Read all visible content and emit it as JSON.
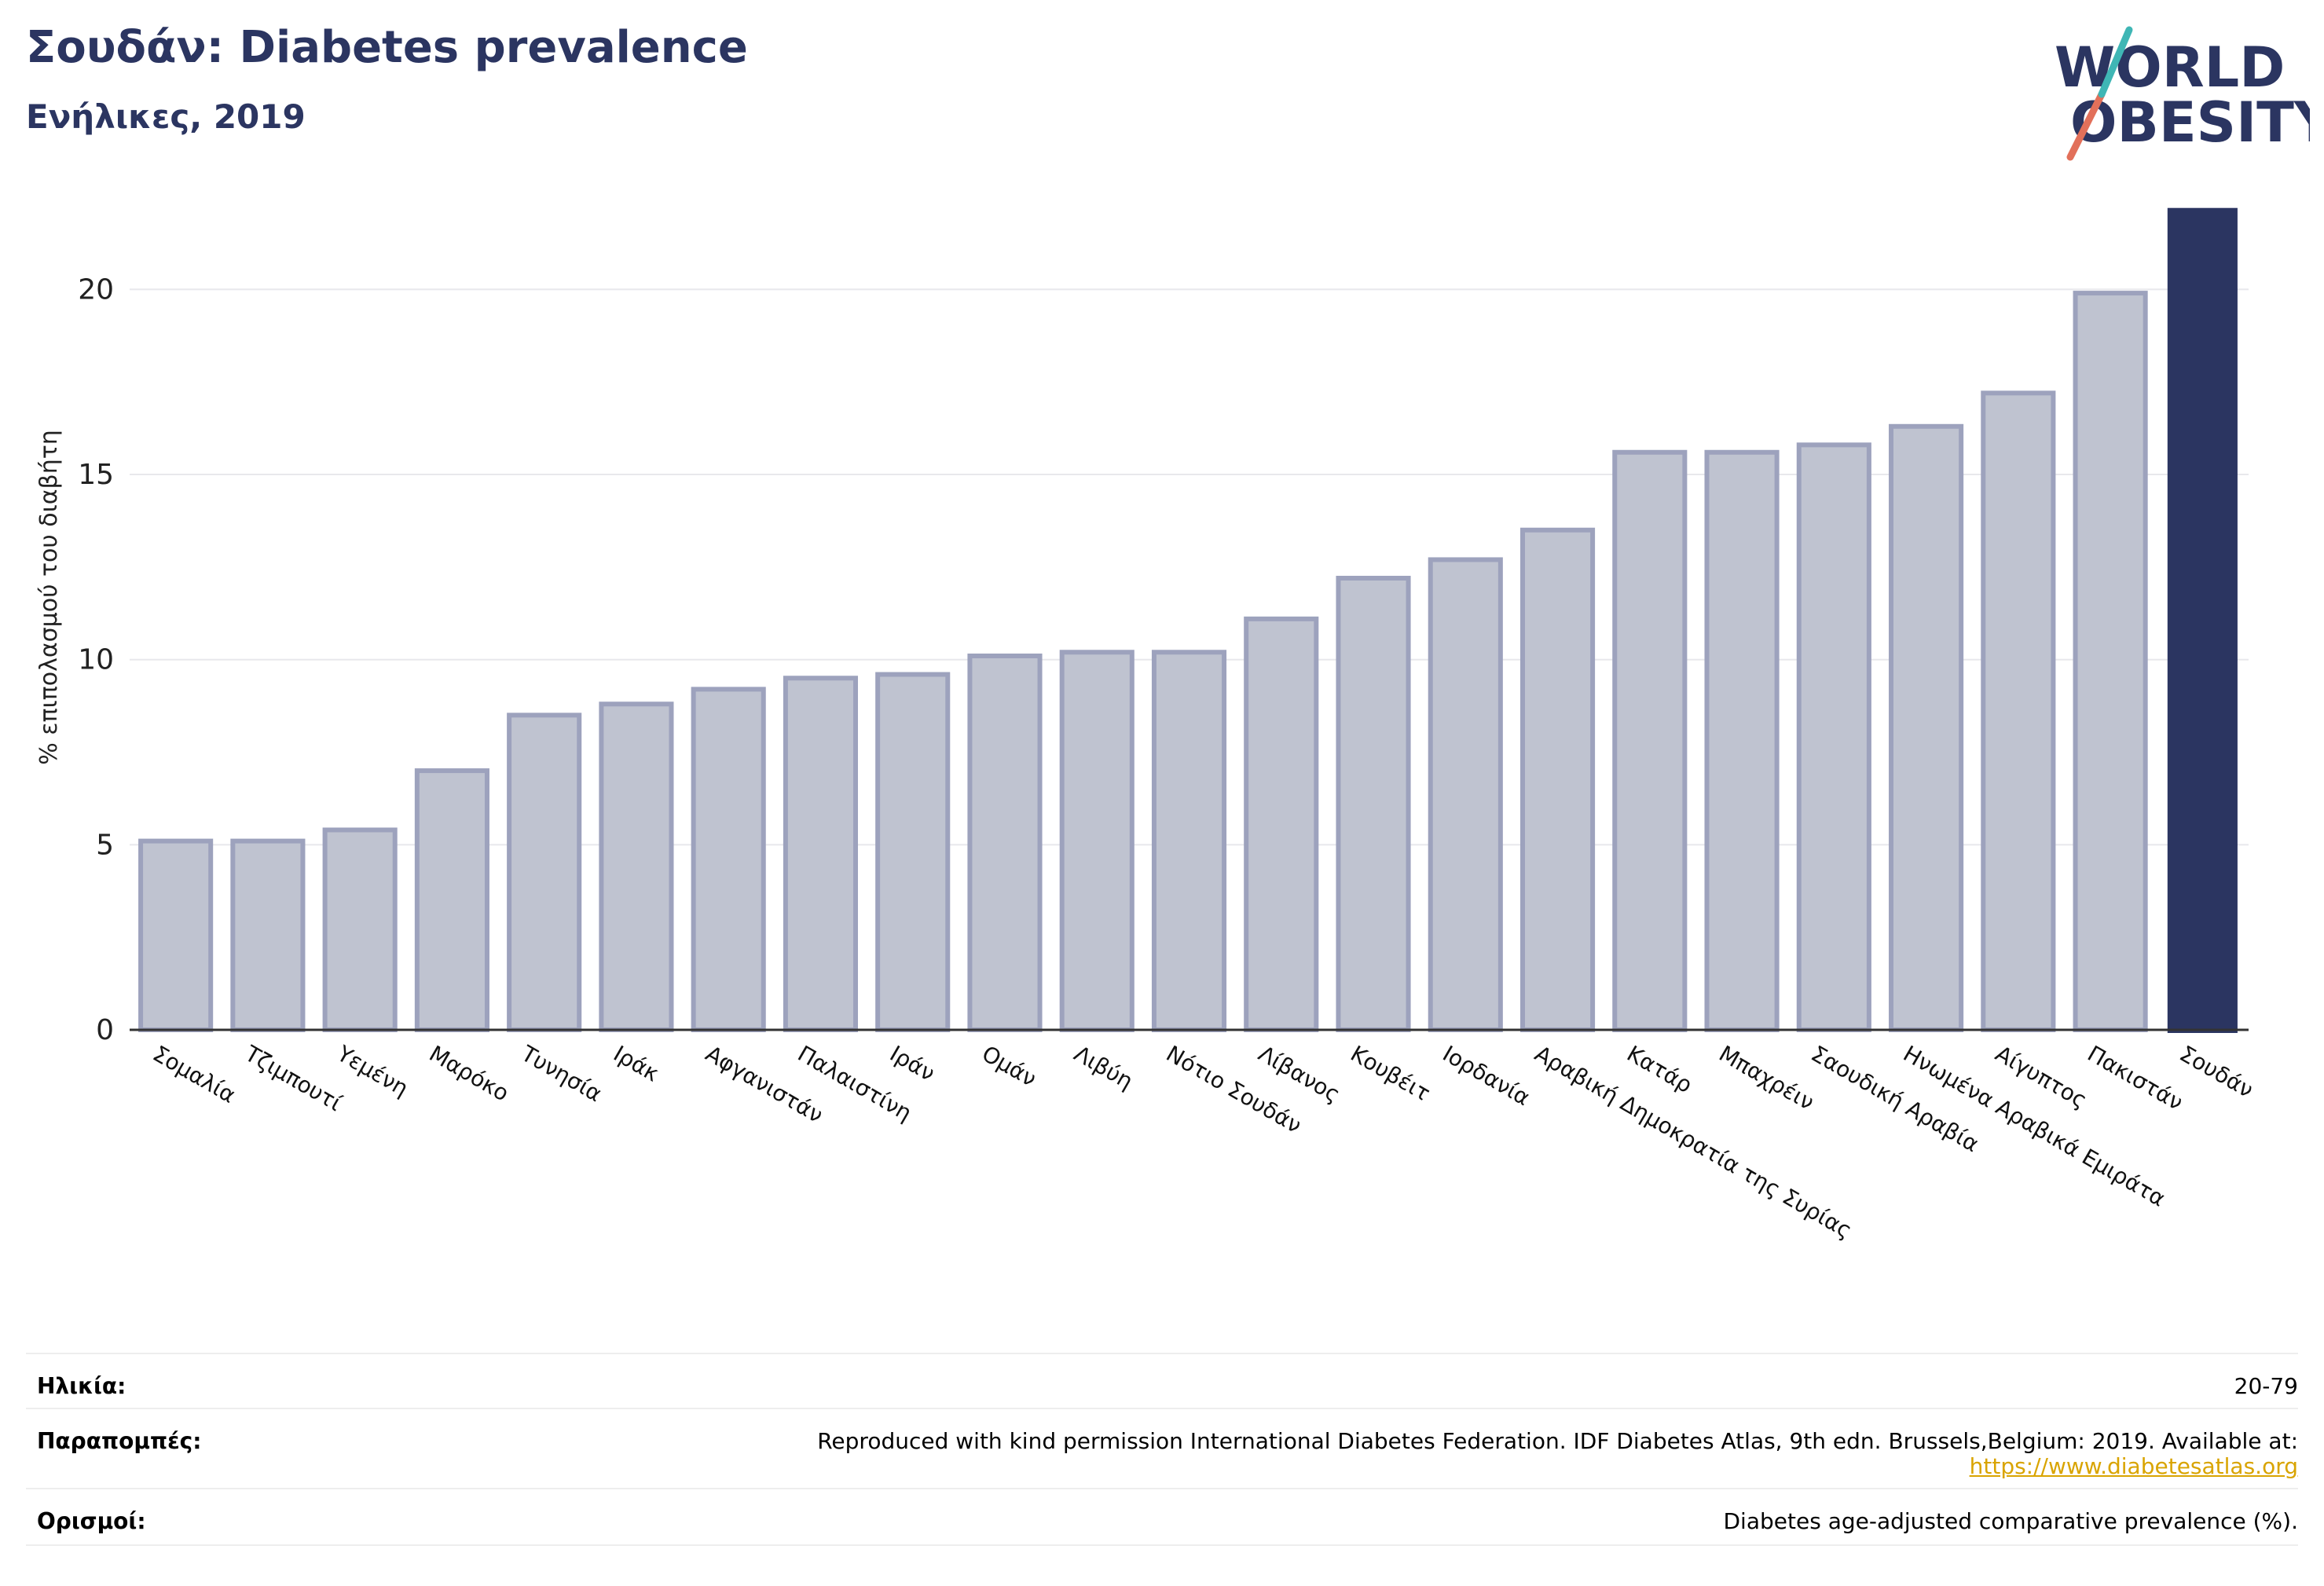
{
  "header": {
    "title": "Σουδάν: Diabetes prevalence",
    "subtitle": "Ενήλικες, 2019"
  },
  "logo": {
    "line1": "WORLD",
    "line2": "OBESITY"
  },
  "colors": {
    "highlight": "#2b3561",
    "bar": "#bfc3d0",
    "bar_edge": "#9da2bd",
    "title": "#2b3561",
    "link": "#d9a400"
  },
  "chart_data": {
    "type": "bar",
    "ylabel": "% επιπολασμού του διαβήτη",
    "ylim": [
      0,
      22.3
    ],
    "yticks": [
      0,
      5,
      10,
      15,
      20
    ],
    "grid": true,
    "highlight_category": "Σουδάν",
    "categories": [
      "Σομαλία",
      "Τζιμπουτί",
      "Υεμένη",
      "Μαρόκο",
      "Τυνησία",
      "Ιράκ",
      "Αφγανιστάν",
      "Παλαιστίνη",
      "Ιράν",
      "Ομάν",
      "Λιβύη",
      "Νότιο Σουδάν",
      "Λίβανος",
      "Κουβέιτ",
      "Ιορδανία",
      "Αραβική Δημοκρατία της Συρίας",
      "Κατάρ",
      "Μπαχρέιν",
      "Σαουδική Αραβία",
      "Ηνωμένα Αραβικά Εμιράτα",
      "Αίγυπτος",
      "Πακιστάν",
      "Σουδάν"
    ],
    "values": [
      5.1,
      5.1,
      5.4,
      7.0,
      8.5,
      8.8,
      9.2,
      9.5,
      9.6,
      10.1,
      10.2,
      10.2,
      11.1,
      12.2,
      12.7,
      13.5,
      15.6,
      15.6,
      15.8,
      16.3,
      17.2,
      19.9,
      22.2
    ]
  },
  "meta": {
    "age_label": "Ηλικία:",
    "age_value": "20-79",
    "references_label": "Παραπομπές:",
    "references_value": "Reproduced with kind permission International Diabetes Federation. IDF Diabetes Atlas, 9th edn. Brussels,Belgium: 2019. Available at:",
    "references_link": "https://www.diabetesatlas.org",
    "definitions_label": "Ορισμοί:",
    "definitions_value": "Diabetes age-adjusted comparative prevalence (%)."
  }
}
